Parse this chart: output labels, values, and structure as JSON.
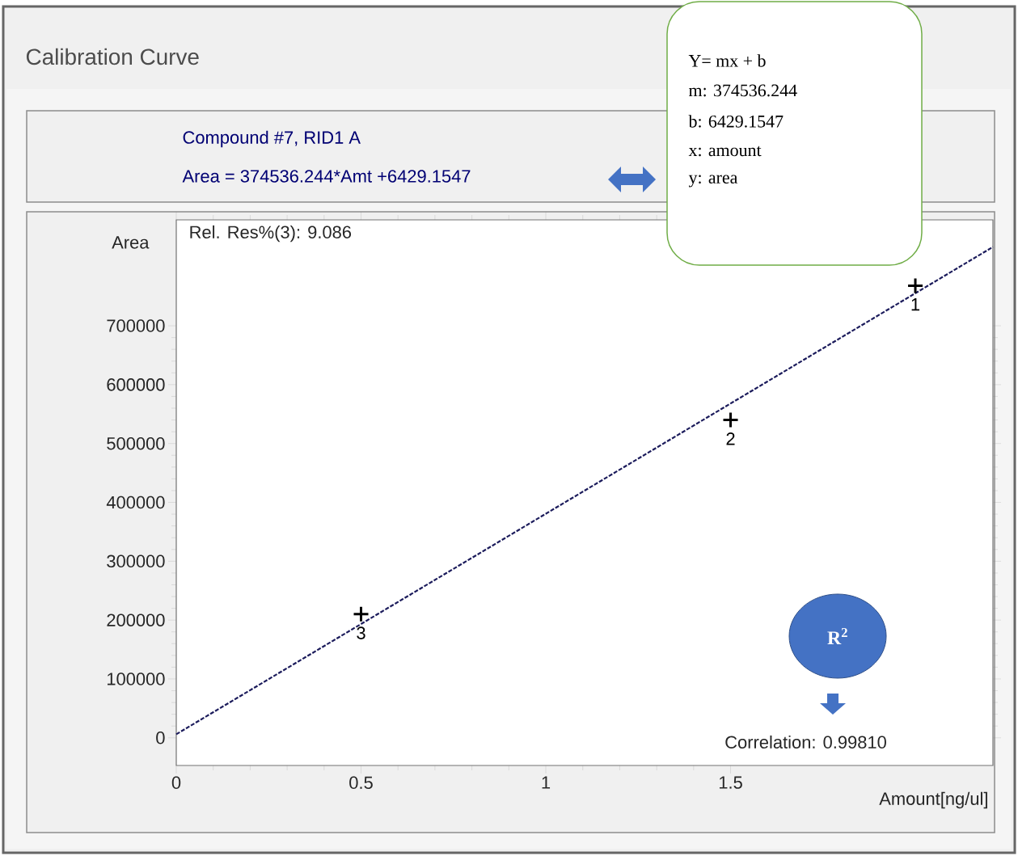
{
  "chart_data": {
    "type": "scatter",
    "title": "Calibration Curve",
    "subtitle": "Compound #7, RID1 A",
    "xlabel": "Amount[ng/ul]",
    "ylabel": "Area",
    "xlim": [
      0,
      2.21
    ],
    "ylim": [
      -47000,
      880000
    ],
    "xticks": [
      0,
      0.5,
      1,
      1.5
    ],
    "yticks": [
      0,
      100000,
      200000,
      300000,
      400000,
      500000,
      600000,
      700000
    ],
    "series": [
      {
        "color": "#000000",
        "marker": "cross",
        "x": [
          2.0,
          1.5,
          0.5
        ],
        "values": [
          768000,
          540000,
          210000
        ]
      },
      {
        "type": "line",
        "color": "#1c1c5c",
        "marker": "none",
        "line_style": "dashed",
        "x": [
          0,
          2.21
        ],
        "values": [
          6000,
          834000
        ]
      }
    ],
    "annotations": [
      "Area = 374536.244*Amt +6429.1547",
      "Rel. Res%(3): 9.086",
      "Correlation: 0.99810",
      "Y= mx + b",
      "m: 374536.244",
      "b: 6429.1547",
      "x: amount",
      "y: area",
      "R$^{2}$",
      {
        "text": "1",
        "x": 2.0,
        "y": 768000
      },
      {
        "text": "2",
        "x": 1.5,
        "y": 540000
      },
      {
        "text": "3",
        "x": 0.5,
        "y": 210000
      }
    ]
  }
}
